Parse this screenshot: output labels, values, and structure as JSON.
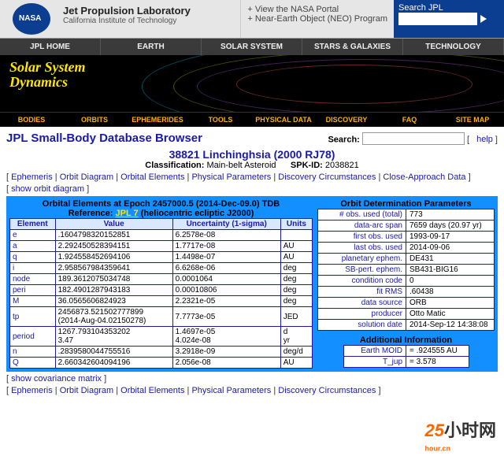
{
  "header": {
    "lab_name": "Jet Propulsion Laboratory",
    "lab_sub": "California Institute of Technology",
    "portal1": "View the NASA Portal",
    "portal2": "Near-Earth Object (NEO) Program",
    "search_label": "Search JPL"
  },
  "main_nav": [
    "JPL HOME",
    "EARTH",
    "SOLAR SYSTEM",
    "STARS & GALAXIES",
    "TECHNOLOGY"
  ],
  "banner_title1": "Solar System",
  "banner_title2": "Dynamics",
  "sub_nav": [
    "BODIES",
    "ORBITS",
    "EPHEMERIDES",
    "TOOLS",
    "PHYSICAL DATA",
    "DISCOVERY",
    "FAQ",
    "SITE MAP"
  ],
  "page_title": "JPL Small-Body Database Browser",
  "search_label": "Search:",
  "help_link": "help",
  "body_name": "38821 Linchinghsia (2000 RJ78)",
  "classification_label": "Classification:",
  "classification_value": "Main-belt Asteroid",
  "spkid_label": "SPK-ID:",
  "spkid_value": "2038821",
  "link_bar_items": [
    "Ephemeris",
    "Orbit Diagram",
    "Orbital Elements",
    "Physical Parameters",
    "Discovery Circumstances",
    "Close-Approach Data"
  ],
  "show_orbit": "show orbit diagram",
  "show_cov": "show covariance matrix",
  "oe_heading": "Orbital Elements at Epoch 2457000.5 (2014-Dec-09.0) TDB",
  "oe_ref_label": "Reference:",
  "oe_ref_link": "JPL 7",
  "oe_ref_tail": "(heliocentric ecliptic J2000)",
  "oe_cols": [
    "Element",
    "Value",
    "Uncertainty (1-sigma)",
    "Units"
  ],
  "oe_rows": [
    {
      "el": "e",
      "val": ".1604798320152851",
      "unc": "6.2578e-08",
      "units": ""
    },
    {
      "el": "a",
      "val": "2.292450528394151",
      "unc": "1.7717e-08",
      "units": "AU"
    },
    {
      "el": "q",
      "val": "1.924558452694106",
      "unc": "1.4498e-07",
      "units": "AU"
    },
    {
      "el": "i",
      "val": "2.958567984359641",
      "unc": "6.6268e-06",
      "units": "deg"
    },
    {
      "el": "node",
      "val": "189.3612075034748",
      "unc": "0.0001064",
      "units": "deg"
    },
    {
      "el": "peri",
      "val": "182.4901287943183",
      "unc": "0.00010806",
      "units": "deg"
    },
    {
      "el": "M",
      "val": "36.0565606824923",
      "unc": "2.2321e-05",
      "units": "deg"
    },
    {
      "el": "tp",
      "val": "2456873.521502777899\n(2014-Aug-04.02150278)",
      "unc": "7.7773e-05",
      "units": "JED"
    },
    {
      "el": "period",
      "val": "1267.793104353202\n3.47",
      "unc": "1.4697e-05\n4.024e-08",
      "units": "d\nyr"
    },
    {
      "el": "n",
      "val": ".2839580044755516",
      "unc": "3.2918e-09",
      "units": "deg/d"
    },
    {
      "el": "Q",
      "val": "2.660342604094196",
      "unc": "2.056e-08",
      "units": "AU"
    }
  ],
  "odp_heading": "Orbit Determination Parameters",
  "odp_rows": [
    {
      "k": "# obs. used (total)",
      "v": "773"
    },
    {
      "k": "data-arc span",
      "v": "7659 days (20.97 yr)"
    },
    {
      "k": "first obs. used",
      "v": "1993-09-17"
    },
    {
      "k": "last obs. used",
      "v": "2014-09-06"
    },
    {
      "k": "planetary ephem.",
      "v": "DE431"
    },
    {
      "k": "SB-pert. ephem.",
      "v": "SB431-BIG16"
    },
    {
      "k": "condition code",
      "v": "0"
    },
    {
      "k": "fit RMS",
      "v": ".60438"
    },
    {
      "k": "data source",
      "v": "ORB"
    },
    {
      "k": "producer",
      "v": "Otto Matic"
    },
    {
      "k": "solution date",
      "v": "2014-Sep-12 14:38:08"
    }
  ],
  "addl_heading": "Additional Information",
  "addl_rows": [
    {
      "k": "Earth MOID",
      "v": ".924555 AU"
    },
    {
      "k": "T_jup",
      "v": "3.578"
    }
  ],
  "bottom_links": [
    "Ephemeris",
    "Orbit Diagram",
    "Orbital Elements",
    "Physical Parameters",
    "Discovery Circumstances"
  ],
  "wm1": "25",
  "wm2": "小时网",
  "wm3": "hour.cn"
}
